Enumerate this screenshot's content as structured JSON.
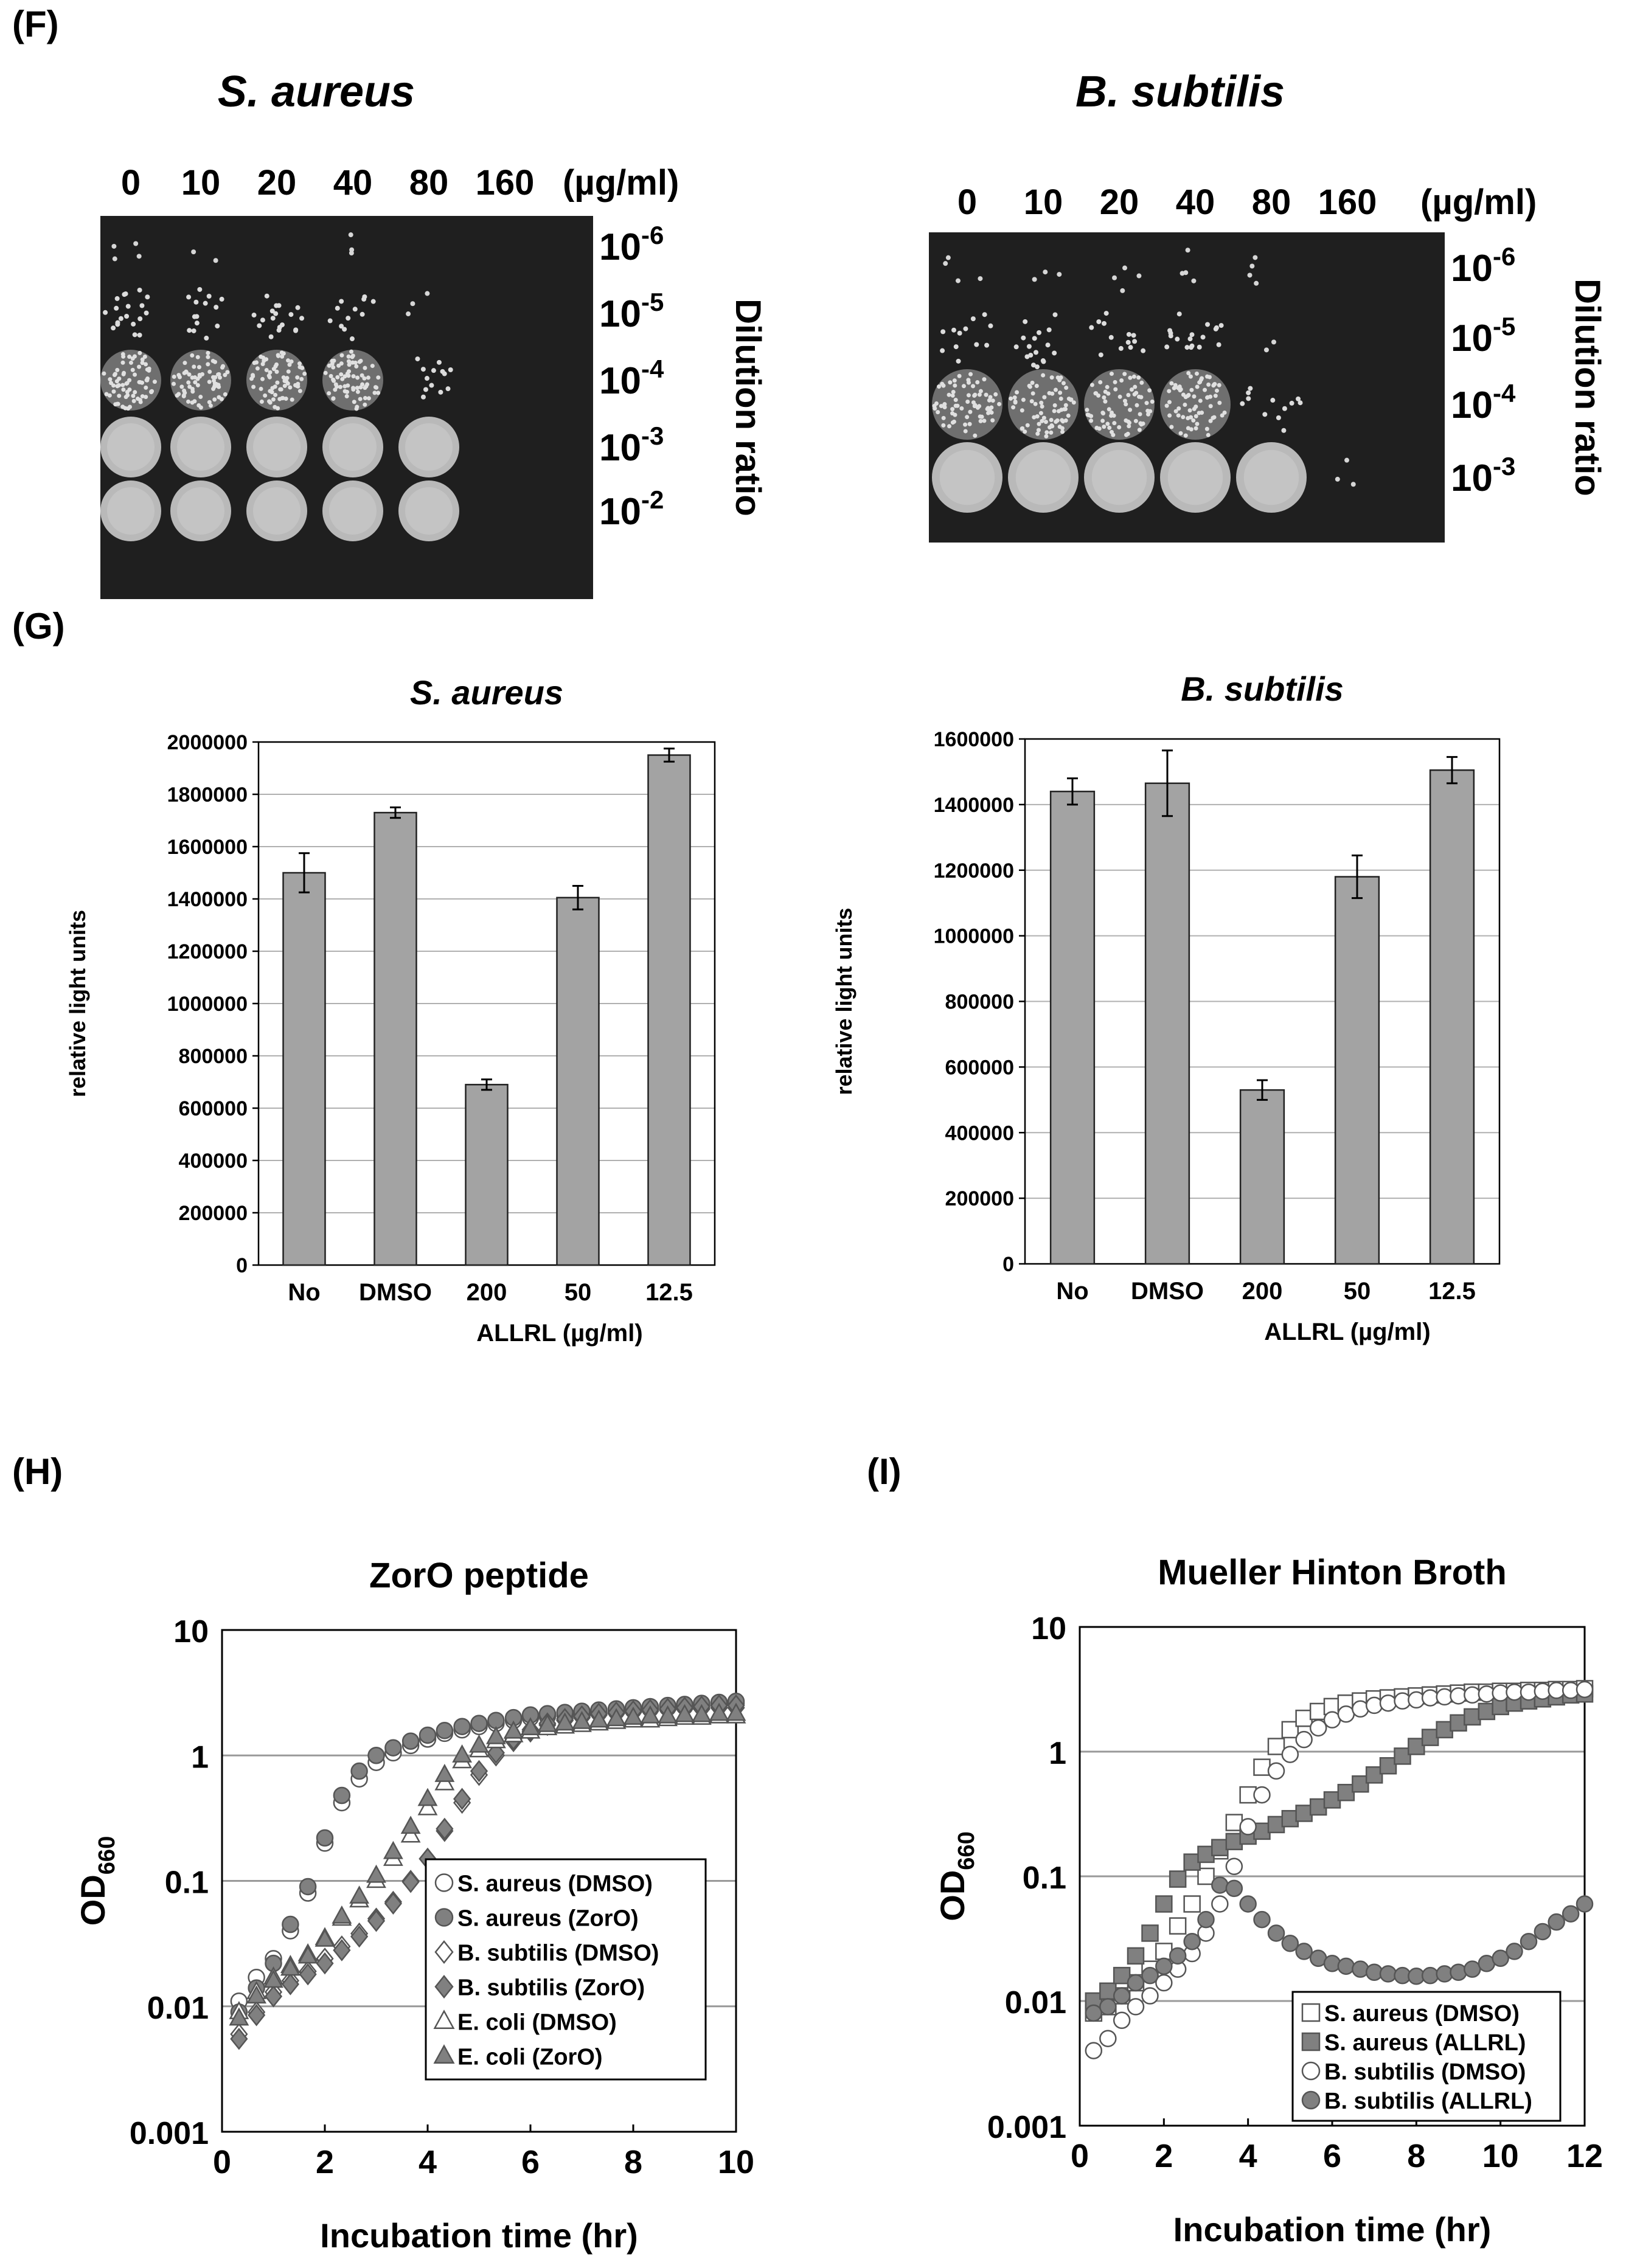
{
  "panels": {
    "F": "(F)",
    "G": "(G)",
    "H": "(H)",
    "I": "(I)"
  },
  "plates": [
    {
      "title": "S. aureus",
      "concentrations": [
        "0",
        "10",
        "20",
        "40",
        "80",
        "160"
      ],
      "unit": "(µg/ml)",
      "axis_label": "Dilution ratio",
      "dilutions": [
        {
          "base": "10",
          "exp": "-6"
        },
        {
          "base": "10",
          "exp": "-5"
        },
        {
          "base": "10",
          "exp": "-4"
        },
        {
          "base": "10",
          "exp": "-3"
        },
        {
          "base": "10",
          "exp": "-2"
        }
      ],
      "growth": [
        [
          "sparse",
          "sparse",
          "none",
          "sparse",
          "none",
          "none"
        ],
        [
          "colonies",
          "colonies",
          "colonies",
          "colonies",
          "sparse",
          "none"
        ],
        [
          "dense",
          "dense",
          "dense",
          "dense",
          "colonies",
          "none"
        ],
        [
          "confluent",
          "confluent",
          "confluent",
          "confluent",
          "confluent",
          "none"
        ],
        [
          "confluent",
          "confluent",
          "confluent",
          "confluent",
          "confluent",
          "none"
        ]
      ]
    },
    {
      "title": "B. subtilis",
      "concentrations": [
        "0",
        "10",
        "20",
        "40",
        "80",
        "160"
      ],
      "unit": "(µg/ml)",
      "axis_label": "Dilution ratio",
      "dilutions": [
        {
          "base": "10",
          "exp": "-6"
        },
        {
          "base": "10",
          "exp": "-5"
        },
        {
          "base": "10",
          "exp": "-4"
        },
        {
          "base": "10",
          "exp": "-3"
        }
      ],
      "growth": [
        [
          "sparse",
          "sparse",
          "sparse",
          "sparse",
          "sparse",
          "none"
        ],
        [
          "colonies",
          "colonies",
          "colonies",
          "colonies",
          "sparse",
          "none"
        ],
        [
          "dense",
          "dense",
          "dense",
          "dense",
          "colonies",
          "none"
        ],
        [
          "confluent",
          "confluent",
          "confluent",
          "confluent",
          "confluent",
          "sparse"
        ]
      ]
    }
  ],
  "chart_data": [
    {
      "type": "bar",
      "title": "S. aureus",
      "ylabel": "relative light units",
      "xlabel": "ALLRL (µg/ml)",
      "categories": [
        "No",
        "DMSO",
        "200",
        "50",
        "12.5"
      ],
      "values": [
        1500000,
        1730000,
        690000,
        1405000,
        1950000
      ],
      "errors": [
        75000,
        20000,
        20000,
        45000,
        25000
      ],
      "ylim": [
        0,
        2000000
      ],
      "yticks": [
        "0",
        "200000",
        "400000",
        "600000",
        "800000",
        "1000000",
        "1200000",
        "1400000",
        "1600000",
        "1800000",
        "2000000"
      ],
      "bar_color": "#a3a3a3",
      "grid": true
    },
    {
      "type": "bar",
      "title": "B. subtilis",
      "ylabel": "relative light units",
      "xlabel": "ALLRL (µg/ml)",
      "categories": [
        "No",
        "DMSO",
        "200",
        "50",
        "12.5"
      ],
      "values": [
        1440000,
        1465000,
        530000,
        1180000,
        1505000
      ],
      "errors": [
        40000,
        100000,
        30000,
        65000,
        40000
      ],
      "ylim": [
        0,
        1600000
      ],
      "yticks": [
        "0",
        "200000",
        "400000",
        "600000",
        "800000",
        "1000000",
        "1200000",
        "1400000",
        "1600000"
      ],
      "bar_color": "#a3a3a3",
      "grid": true
    },
    {
      "type": "scatter",
      "title": "ZorO peptide",
      "xlabel": "Incubation time (hr)",
      "ylabel": {
        "base": "OD",
        "sub": "660"
      },
      "yscale": "log",
      "xlim": [
        0,
        10
      ],
      "ylim": [
        0.001,
        10
      ],
      "xticks": [
        "0",
        "2",
        "4",
        "6",
        "8",
        "10"
      ],
      "yticks": [
        "0.001",
        "0.01",
        "0.1",
        "1",
        "10"
      ],
      "legend_position": "bottom-right",
      "grid": true,
      "series": [
        {
          "name": "S. aureus (DMSO)",
          "marker": "circle",
          "fill": "open",
          "x": [
            0.33,
            0.67,
            1.0,
            1.33,
            1.67,
            2.0,
            2.33,
            2.67,
            3.0,
            3.33,
            3.67,
            4.0,
            4.33,
            4.67,
            5.0,
            5.33,
            5.67,
            6.0,
            6.33,
            6.67,
            7.0,
            7.33,
            7.67,
            8.0,
            8.33,
            8.67,
            9.0,
            9.33,
            9.67,
            10.0
          ],
          "y": [
            0.011,
            0.017,
            0.024,
            0.04,
            0.08,
            0.2,
            0.42,
            0.65,
            0.88,
            1.05,
            1.2,
            1.35,
            1.5,
            1.6,
            1.7,
            1.8,
            1.9,
            2.0,
            2.05,
            2.1,
            2.15,
            2.2,
            2.25,
            2.3,
            2.35,
            2.4,
            2.45,
            2.5,
            2.55,
            2.6
          ]
        },
        {
          "name": "S. aureus (ZorO)",
          "marker": "circle",
          "fill": "filled",
          "x": [
            0.33,
            0.67,
            1.0,
            1.33,
            1.67,
            2.0,
            2.33,
            2.67,
            3.0,
            3.33,
            3.67,
            4.0,
            4.33,
            4.67,
            5.0,
            5.33,
            5.67,
            6.0,
            6.33,
            6.67,
            7.0,
            7.33,
            7.67,
            8.0,
            8.33,
            8.67,
            9.0,
            9.33,
            9.67,
            10.0
          ],
          "y": [
            0.009,
            0.014,
            0.022,
            0.045,
            0.09,
            0.22,
            0.48,
            0.75,
            1.0,
            1.15,
            1.3,
            1.45,
            1.58,
            1.7,
            1.8,
            1.9,
            2.0,
            2.1,
            2.15,
            2.2,
            2.25,
            2.3,
            2.35,
            2.4,
            2.45,
            2.5,
            2.55,
            2.6,
            2.65,
            2.7
          ]
        },
        {
          "name": "B. subtilis (DMSO)",
          "marker": "diamond",
          "fill": "open",
          "x": [
            0.33,
            0.67,
            1.0,
            1.33,
            1.67,
            2.0,
            2.33,
            2.67,
            3.0,
            3.33,
            3.67,
            4.0,
            4.33,
            4.67,
            5.0,
            5.33,
            5.67,
            6.0,
            6.33,
            6.67,
            7.0,
            7.33,
            7.67,
            8.0,
            8.33,
            8.67,
            9.0,
            9.33,
            9.67,
            10.0
          ],
          "y": [
            0.006,
            0.009,
            0.013,
            0.016,
            0.019,
            0.024,
            0.03,
            0.038,
            0.05,
            0.068,
            0.1,
            0.15,
            0.25,
            0.42,
            0.7,
            1.0,
            1.3,
            1.55,
            1.75,
            1.9,
            2.0,
            2.1,
            2.15,
            2.2,
            2.25,
            2.3,
            2.35,
            2.35,
            2.4,
            2.4
          ]
        },
        {
          "name": "B. subtilis (ZorO)",
          "marker": "diamond",
          "fill": "filled",
          "x": [
            0.33,
            0.67,
            1.0,
            1.33,
            1.67,
            2.0,
            2.33,
            2.67,
            3.0,
            3.33,
            3.67,
            4.0,
            4.33,
            4.67,
            5.0,
            5.33,
            5.67,
            6.0,
            6.33,
            6.67,
            7.0,
            7.33,
            7.67,
            8.0,
            8.33,
            8.67,
            9.0,
            9.33,
            9.67,
            10.0
          ],
          "y": [
            0.0055,
            0.0085,
            0.012,
            0.015,
            0.018,
            0.022,
            0.028,
            0.036,
            0.048,
            0.066,
            0.098,
            0.15,
            0.26,
            0.45,
            0.75,
            1.05,
            1.35,
            1.6,
            1.8,
            1.95,
            2.05,
            2.15,
            2.2,
            2.25,
            2.3,
            2.35,
            2.4,
            2.45,
            2.5,
            2.5
          ]
        },
        {
          "name": "E. coli (DMSO)",
          "marker": "triangle",
          "fill": "open",
          "x": [
            0.33,
            0.67,
            1.0,
            1.33,
            1.67,
            2.0,
            2.33,
            2.67,
            3.0,
            3.33,
            3.67,
            4.0,
            4.33,
            4.67,
            5.0,
            5.33,
            5.67,
            6.0,
            6.33,
            6.67,
            7.0,
            7.33,
            7.67,
            8.0,
            8.33,
            8.67,
            9.0,
            9.33,
            9.67,
            10.0
          ],
          "y": [
            0.009,
            0.013,
            0.017,
            0.021,
            0.026,
            0.035,
            0.05,
            0.07,
            0.1,
            0.15,
            0.23,
            0.38,
            0.6,
            0.9,
            1.1,
            1.3,
            1.45,
            1.55,
            1.65,
            1.7,
            1.75,
            1.8,
            1.85,
            1.9,
            1.9,
            1.95,
            2.0,
            2.0,
            2.05,
            2.05
          ]
        },
        {
          "name": "E. coli (ZorO)",
          "marker": "triangle",
          "fill": "filled",
          "x": [
            0.33,
            0.67,
            1.0,
            1.33,
            1.67,
            2.0,
            2.33,
            2.67,
            3.0,
            3.33,
            3.67,
            4.0,
            4.33,
            4.67,
            5.0,
            5.33,
            5.67,
            6.0,
            6.33,
            6.67,
            7.0,
            7.33,
            7.67,
            8.0,
            8.33,
            8.67,
            9.0,
            9.33,
            9.67,
            10.0
          ],
          "y": [
            0.008,
            0.012,
            0.016,
            0.02,
            0.025,
            0.034,
            0.052,
            0.075,
            0.11,
            0.17,
            0.27,
            0.45,
            0.7,
            1.0,
            1.2,
            1.4,
            1.55,
            1.65,
            1.75,
            1.8,
            1.85,
            1.9,
            1.95,
            2.0,
            2.05,
            2.05,
            2.1,
            2.1,
            2.15,
            2.15
          ]
        }
      ]
    },
    {
      "type": "scatter",
      "title": "Mueller Hinton Broth",
      "xlabel": "Incubation time (hr)",
      "ylabel": {
        "base": "OD",
        "sub": "660"
      },
      "yscale": "log",
      "xlim": [
        0,
        12
      ],
      "ylim": [
        0.001,
        10
      ],
      "xticks": [
        "0",
        "2",
        "4",
        "6",
        "8",
        "10",
        "12"
      ],
      "yticks": [
        "0.001",
        "0.01",
        "0.1",
        "1",
        "10"
      ],
      "legend_position": "bottom-right",
      "grid": true,
      "series": [
        {
          "name": "S. aureus (DMSO)",
          "marker": "square",
          "fill": "open",
          "x": [
            0.33,
            0.67,
            1.0,
            1.33,
            1.67,
            2.0,
            2.33,
            2.67,
            3.0,
            3.33,
            3.67,
            4.0,
            4.33,
            4.67,
            5.0,
            5.33,
            5.67,
            6.0,
            6.33,
            6.67,
            7.0,
            7.33,
            7.67,
            8.0,
            8.33,
            8.67,
            9.0,
            9.33,
            9.67,
            10.0,
            10.33,
            10.67,
            11.0,
            11.33,
            11.67,
            12.0
          ],
          "y": [
            0.008,
            0.009,
            0.011,
            0.014,
            0.018,
            0.025,
            0.04,
            0.06,
            0.1,
            0.16,
            0.27,
            0.45,
            0.75,
            1.1,
            1.5,
            1.85,
            2.1,
            2.3,
            2.45,
            2.55,
            2.65,
            2.7,
            2.75,
            2.8,
            2.85,
            2.9,
            2.95,
            3.0,
            3.0,
            3.05,
            3.05,
            3.1,
            3.1,
            3.15,
            3.15,
            3.2
          ]
        },
        {
          "name": "S. aureus (ALLRL)",
          "marker": "square",
          "fill": "filled",
          "x": [
            0.33,
            0.67,
            1.0,
            1.33,
            1.67,
            2.0,
            2.33,
            2.67,
            3.0,
            3.33,
            3.67,
            4.0,
            4.33,
            4.67,
            5.0,
            5.33,
            5.67,
            6.0,
            6.33,
            6.67,
            7.0,
            7.33,
            7.67,
            8.0,
            8.33,
            8.67,
            9.0,
            9.33,
            9.67,
            10.0,
            10.33,
            10.67,
            11.0,
            11.33,
            11.67,
            12.0
          ],
          "y": [
            0.01,
            0.012,
            0.016,
            0.023,
            0.035,
            0.06,
            0.095,
            0.13,
            0.15,
            0.17,
            0.19,
            0.21,
            0.23,
            0.26,
            0.29,
            0.32,
            0.36,
            0.41,
            0.47,
            0.55,
            0.65,
            0.77,
            0.92,
            1.1,
            1.3,
            1.5,
            1.7,
            1.9,
            2.1,
            2.3,
            2.45,
            2.55,
            2.65,
            2.75,
            2.85,
            2.9
          ]
        },
        {
          "name": "B. subtilis (DMSO)",
          "marker": "circle",
          "fill": "open",
          "x": [
            0.33,
            0.67,
            1.0,
            1.33,
            1.67,
            2.0,
            2.33,
            2.67,
            3.0,
            3.33,
            3.67,
            4.0,
            4.33,
            4.67,
            5.0,
            5.33,
            5.67,
            6.0,
            6.33,
            6.67,
            7.0,
            7.33,
            7.67,
            8.0,
            8.33,
            8.67,
            9.0,
            9.33,
            9.67,
            10.0,
            10.33,
            10.67,
            11.0,
            11.33,
            11.67,
            12.0
          ],
          "y": [
            0.004,
            0.005,
            0.007,
            0.009,
            0.011,
            0.014,
            0.018,
            0.024,
            0.035,
            0.06,
            0.12,
            0.25,
            0.45,
            0.7,
            0.95,
            1.25,
            1.55,
            1.8,
            2.0,
            2.2,
            2.35,
            2.45,
            2.55,
            2.6,
            2.7,
            2.75,
            2.8,
            2.85,
            2.9,
            2.95,
            3.0,
            3.0,
            3.05,
            3.1,
            3.1,
            3.15
          ]
        },
        {
          "name": "B. subtilis (ALLRL)",
          "marker": "circle",
          "fill": "filled",
          "x": [
            0.33,
            0.67,
            1.0,
            1.33,
            1.67,
            2.0,
            2.33,
            2.67,
            3.0,
            3.33,
            3.67,
            4.0,
            4.33,
            4.67,
            5.0,
            5.33,
            5.67,
            6.0,
            6.33,
            6.67,
            7.0,
            7.33,
            7.67,
            8.0,
            8.33,
            8.67,
            9.0,
            9.33,
            9.67,
            10.0,
            10.33,
            10.67,
            11.0,
            11.33,
            11.67,
            12.0
          ],
          "y": [
            0.008,
            0.009,
            0.011,
            0.014,
            0.016,
            0.019,
            0.023,
            0.03,
            0.045,
            0.085,
            0.08,
            0.06,
            0.045,
            0.035,
            0.029,
            0.025,
            0.022,
            0.02,
            0.019,
            0.018,
            0.017,
            0.0165,
            0.016,
            0.0158,
            0.016,
            0.0165,
            0.017,
            0.018,
            0.02,
            0.022,
            0.025,
            0.03,
            0.036,
            0.043,
            0.05,
            0.06
          ]
        }
      ]
    }
  ]
}
